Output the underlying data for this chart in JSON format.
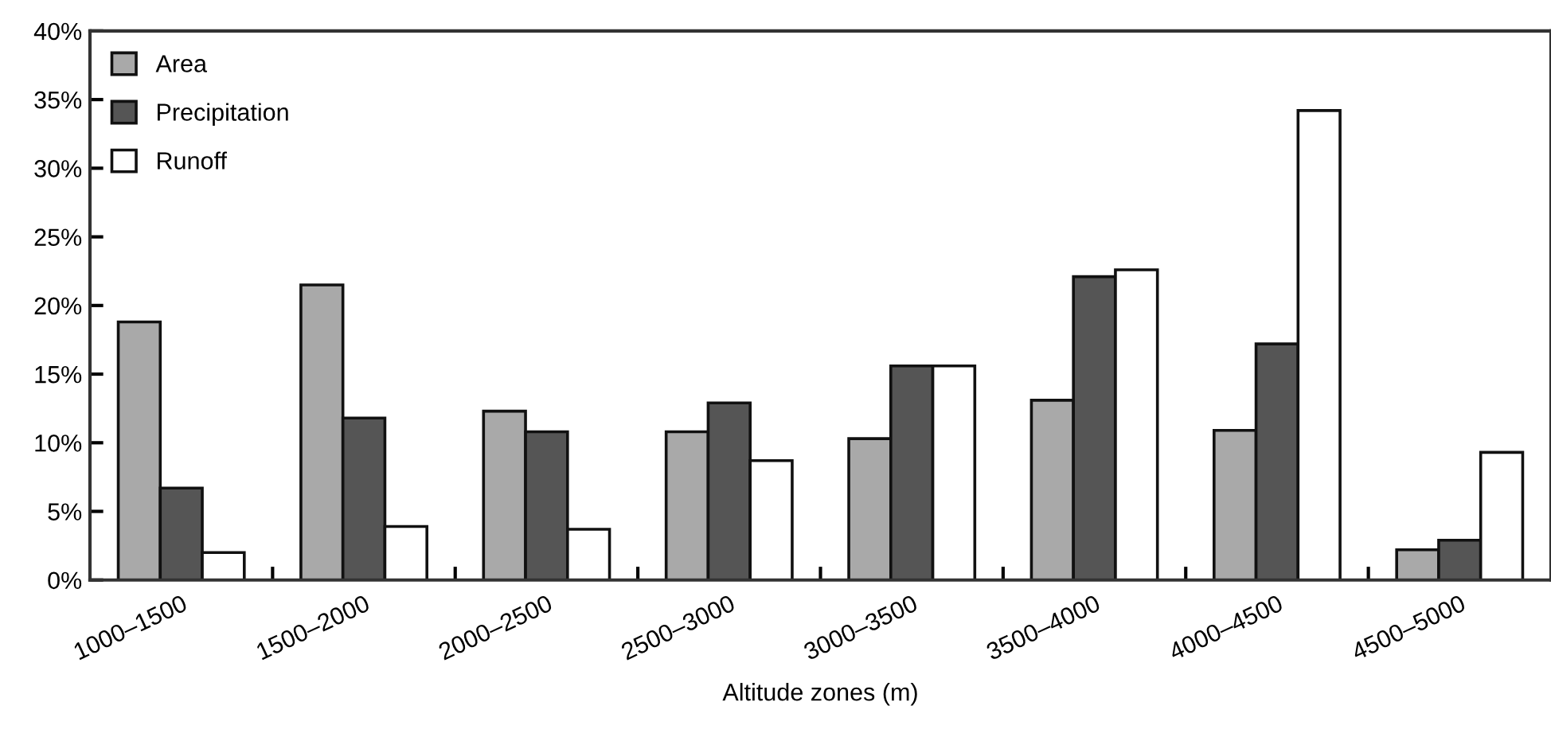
{
  "chart_data": {
    "type": "bar",
    "xlabel": "Altitude zones (m)",
    "categories": [
      "1000–1500",
      "1500–2000",
      "2000–2500",
      "2500–3000",
      "3000–3500",
      "3500–4000",
      "4000–4500",
      "4500–5000"
    ],
    "series": [
      {
        "name": "Area",
        "color": "#a9a9a9",
        "values": [
          18.8,
          21.5,
          12.3,
          10.8,
          10.3,
          13.1,
          10.9,
          2.2
        ]
      },
      {
        "name": "Precipitation",
        "color": "#555555",
        "values": [
          6.7,
          11.8,
          10.8,
          12.9,
          15.6,
          22.1,
          17.2,
          2.9
        ]
      },
      {
        "name": "Runoff",
        "color": "#ffffff",
        "values": [
          2.0,
          3.9,
          3.7,
          8.7,
          15.6,
          22.6,
          34.2,
          9.3
        ]
      }
    ],
    "ylim": [
      0,
      40
    ],
    "yticks": [
      {
        "value": 0,
        "label": "0%"
      },
      {
        "value": 5,
        "label": "5%"
      },
      {
        "value": 10,
        "label": "10%"
      },
      {
        "value": 15,
        "label": "15%"
      },
      {
        "value": 20,
        "label": "20%"
      },
      {
        "value": 25,
        "label": "25%"
      },
      {
        "value": 30,
        "label": "30%"
      },
      {
        "value": 35,
        "label": "35%"
      },
      {
        "value": 40,
        "label": "40%"
      }
    ],
    "grid": false,
    "legend": "top left"
  }
}
